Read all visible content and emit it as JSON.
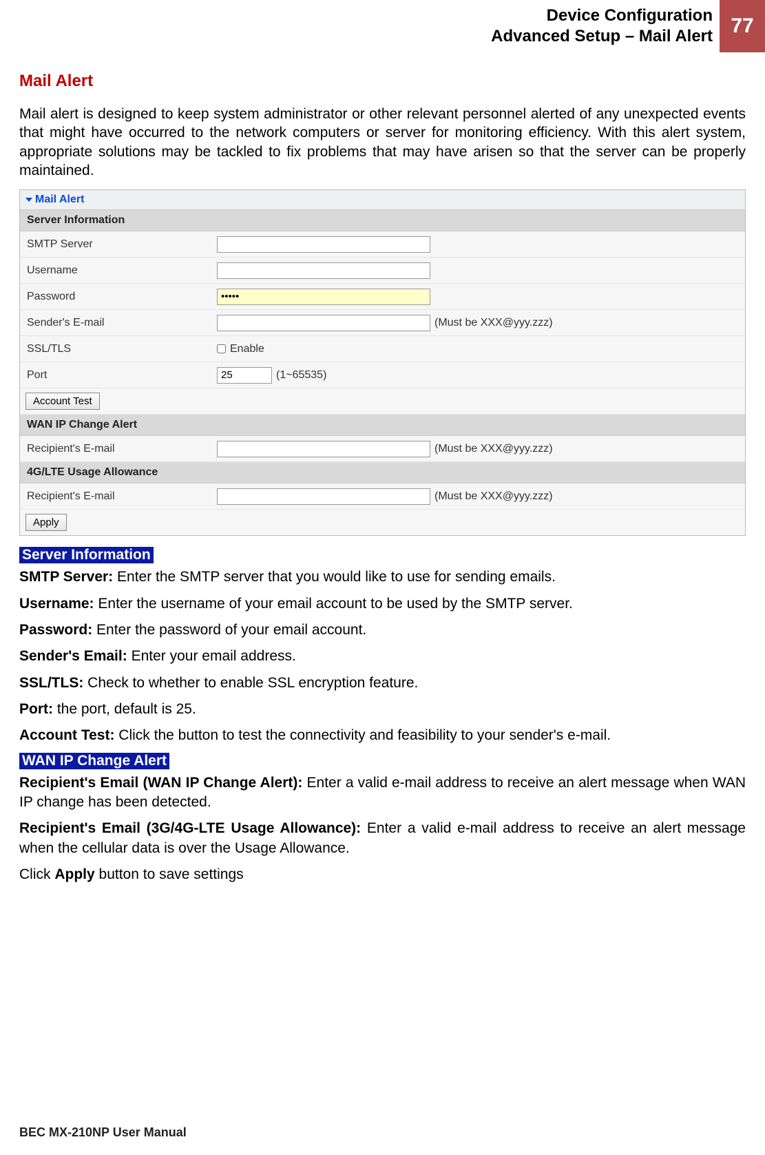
{
  "header": {
    "line1": "Device Configuration",
    "line2": "Advanced Setup – Mail Alert",
    "page_number": "77",
    "badge_bg": "#b34a4a"
  },
  "section_title": "Mail Alert",
  "intro": "Mail alert is designed to keep system administrator or other relevant personnel alerted of any unexpected events that might have occurred to the network computers or server for monitoring efficiency. With this alert system, appropriate solutions may be tackled to fix problems that may have arisen so that the server can be properly maintained.",
  "panel": {
    "title": "Mail Alert",
    "groups": {
      "server_info": "Server Information",
      "wan_ip": "WAN IP Change Alert",
      "usage": "4G/LTE Usage Allowance"
    },
    "rows": {
      "smtp": "SMTP Server",
      "user": "Username",
      "pass": "Password",
      "pass_value": "•••••",
      "sender": "Sender's E-mail",
      "email_hint": "(Must be XXX@yyy.zzz)",
      "ssl": "SSL/TLS",
      "ssl_enable": "Enable",
      "port": "Port",
      "port_value": "25",
      "port_hint": "(1~65535)",
      "recip": "Recipient's E-mail"
    },
    "buttons": {
      "account_test": "Account Test",
      "apply": "Apply"
    }
  },
  "desc": {
    "head1": "Server Information",
    "p1_b": "SMTP Server:",
    "p1": " Enter the SMTP server that you would like to use for sending emails.",
    "p2_b": "Username:",
    "p2": " Enter the username of your email account to be used by the SMTP server.",
    "p3_b": "Password:",
    "p3": " Enter the password of your email account.",
    "p4_b": "Sender's Email:",
    "p4": " Enter your email address.",
    "p5_b": "SSL/TLS:",
    "p5": " Check to whether to enable SSL encryption feature.",
    "p6_b": "Port:",
    "p6": " the port, default is 25.",
    "p7_b": "Account Test:",
    "p7": " Click the button to test the connectivity and feasibility to your sender's e-mail.",
    "head2": "WAN IP Change Alert",
    "p8_b": "Recipient's Email (WAN IP Change Alert):",
    "p8": " Enter a valid e-mail address to receive an alert message when WAN IP change has been detected.",
    "p9_b": "Recipient's Email (3G/4G-LTE Usage Allowance):",
    "p9": " Enter a valid e-mail address to receive an alert message when the cellular data is over the Usage Allowance.",
    "p10a": "Click ",
    "p10b": "Apply",
    "p10c": " button to save settings"
  },
  "footer": "BEC MX-210NP User Manual"
}
